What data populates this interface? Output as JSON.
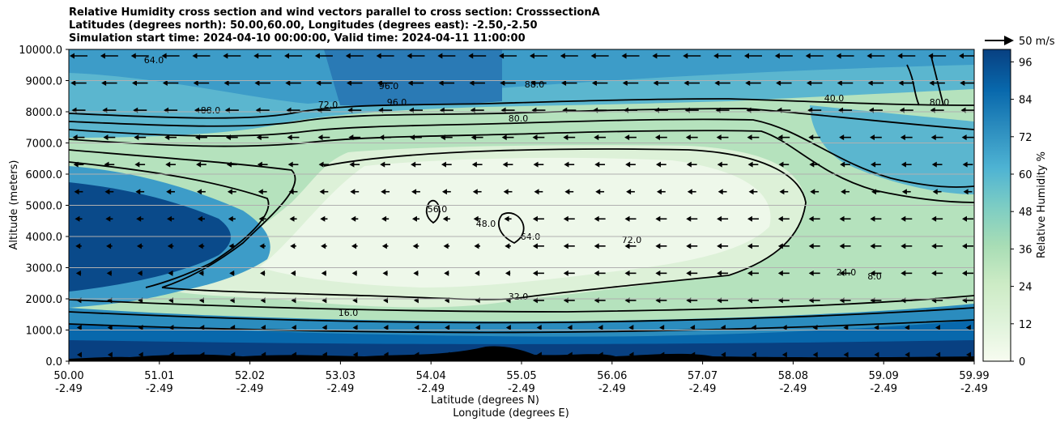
{
  "header": {
    "title_line1": "Relative Humidity cross section and wind vectors parallel to cross section: CrosssectionA",
    "title_line2": "Latitudes (degrees north): 50.00,60.00, Longitudes (degrees east): -2.50,-2.50",
    "title_line3": "Simulation start time: 2024-04-10 00:00:00, Valid time: 2024-04-11 11:00:00"
  },
  "chart_data": {
    "type": "heatmap",
    "title": "Relative Humidity cross section and wind vectors parallel to cross section: CrosssectionA",
    "ylabel": "Altitude (meters)",
    "xlabel_line1": "Latitude (degrees N)",
    "xlabel_line2": "Longitude (degrees E)",
    "y_ticks": [
      "0.0",
      "1000.0",
      "2000.0",
      "3000.0",
      "4000.0",
      "5000.0",
      "6000.0",
      "7000.0",
      "8000.0",
      "9000.0",
      "10000.0"
    ],
    "ylim": [
      0,
      10000
    ],
    "x_ticks_lat": [
      "50.00",
      "51.01",
      "52.02",
      "53.03",
      "54.04",
      "55.05",
      "56.06",
      "57.07",
      "58.08",
      "59.09",
      "59.99"
    ],
    "x_ticks_lon": [
      "-2.49",
      "-2.49",
      "-2.49",
      "-2.49",
      "-2.49",
      "-2.49",
      "-2.49",
      "-2.49",
      "-2.49",
      "-2.49",
      "-2.49"
    ],
    "xlim": [
      50.0,
      59.99
    ],
    "grid": "horizontal",
    "colorbar": {
      "label": "Relative Humidity %",
      "ticks": [
        "0",
        "12",
        "24",
        "36",
        "48",
        "60",
        "72",
        "84",
        "96"
      ],
      "range": [
        0,
        100
      ],
      "colors": [
        "#f7fcf0",
        "#e0f3db",
        "#ccebc5",
        "#a8ddb5",
        "#7bccc4",
        "#4eb3d3",
        "#2b8cbe",
        "#0868ac",
        "#084081"
      ]
    },
    "quiver_key": "50 m/s",
    "contour_labels": [
      "64.0",
      "72.0",
      "80.0",
      "88.0",
      "96.0",
      "40.0",
      "24.0",
      "8.0",
      "16.0",
      "32.0",
      "56.0",
      "48.0"
    ]
  }
}
